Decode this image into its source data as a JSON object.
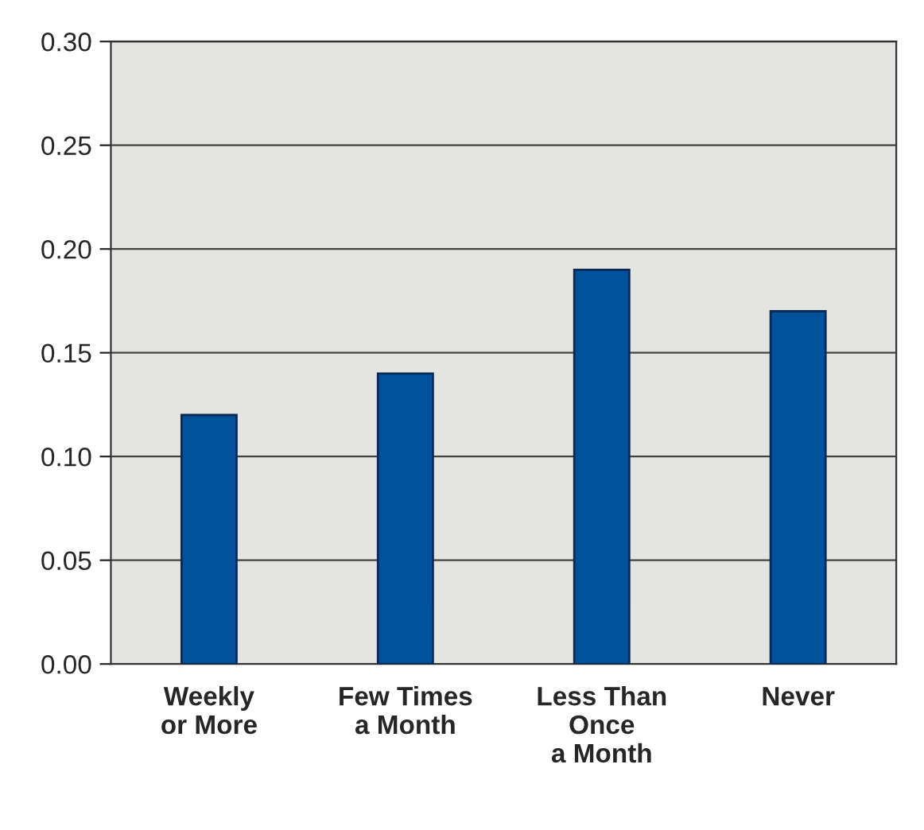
{
  "chart_data": {
    "type": "bar",
    "categories": [
      "Weekly\nor More",
      "Few Times\na Month",
      "Less Than\nOnce\na Month",
      "Never"
    ],
    "values": [
      0.12,
      0.14,
      0.19,
      0.17
    ],
    "color": "#00529b",
    "ylim": [
      0,
      0.3
    ],
    "yticks": [
      {
        "value": 0,
        "label": "0.00"
      },
      {
        "value": 0.05,
        "label": "0.05"
      },
      {
        "value": 0.1,
        "label": "0.10"
      },
      {
        "value": 0.15,
        "label": "0.15"
      },
      {
        "value": 0.2,
        "label": "0.20"
      },
      {
        "value": 0.25,
        "label": "0.25"
      },
      {
        "value": 0.3,
        "label": "0.30"
      }
    ],
    "grid": "y"
  }
}
